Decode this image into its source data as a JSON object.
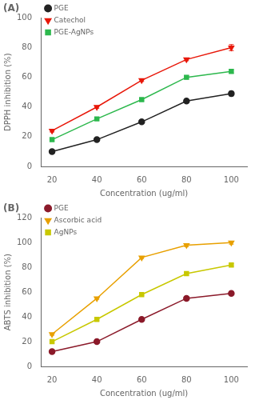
{
  "chart_data": [
    {
      "type": "line",
      "title": "(A)",
      "xlabel": "Concentration (ug/ml)",
      "ylabel": "DPPH inhibition (%)",
      "x": [
        20,
        40,
        60,
        80,
        100
      ],
      "xlim": [
        15,
        107
      ],
      "xticks": [
        20,
        40,
        60,
        80,
        100
      ],
      "ylim": [
        0,
        100
      ],
      "yticks": [
        0,
        20,
        40,
        60,
        80,
        100
      ],
      "grid": false,
      "legend": "upper left",
      "series": [
        {
          "name": "PGE",
          "color": "#222222",
          "marker": "circle",
          "values": [
            10,
            18,
            30,
            44,
            49
          ],
          "yerr": [
            0.8,
            0.8,
            0.8,
            0.8,
            1.5
          ]
        },
        {
          "name": "Catechol",
          "color": "#e8180a",
          "marker": "triangle-down",
          "values": [
            24,
            40,
            58,
            72,
            80
          ],
          "yerr": [
            0.8,
            0.8,
            0.8,
            0.8,
            2.0
          ]
        },
        {
          "name": "PGE-AgNPs",
          "color": "#2db84d",
          "marker": "square",
          "values": [
            18,
            32,
            45,
            60,
            64
          ],
          "yerr": [
            0.8,
            0.8,
            0.8,
            1.2,
            1.2
          ]
        }
      ]
    },
    {
      "type": "line",
      "title": "(B)",
      "xlabel": "Concentration (ug/ml)",
      "ylabel": "ABTS inhibition (%)",
      "x": [
        20,
        40,
        60,
        80,
        100
      ],
      "xlim": [
        15,
        107
      ],
      "xticks": [
        20,
        40,
        60,
        80,
        100
      ],
      "ylim": [
        0,
        120
      ],
      "yticks": [
        0,
        20,
        40,
        60,
        80,
        100,
        120
      ],
      "grid": false,
      "legend": "upper left",
      "series": [
        {
          "name": "PGE",
          "color": "#8b1a2a",
          "marker": "circle",
          "values": [
            12,
            20,
            38,
            55,
            59
          ],
          "yerr": [
            0.8,
            0.8,
            0.8,
            1.2,
            1.2
          ]
        },
        {
          "name": "Ascorbic acid",
          "color": "#e8a000",
          "marker": "triangle-down",
          "values": [
            26,
            55,
            88,
            98,
            100
          ],
          "yerr": [
            0.8,
            0.8,
            0.8,
            1.2,
            1.2
          ]
        },
        {
          "name": "AgNPs",
          "color": "#c8c800",
          "marker": "square",
          "values": [
            20,
            38,
            58,
            75,
            82
          ],
          "yerr": [
            0.8,
            0.8,
            0.8,
            1.2,
            1.2
          ]
        }
      ]
    }
  ]
}
